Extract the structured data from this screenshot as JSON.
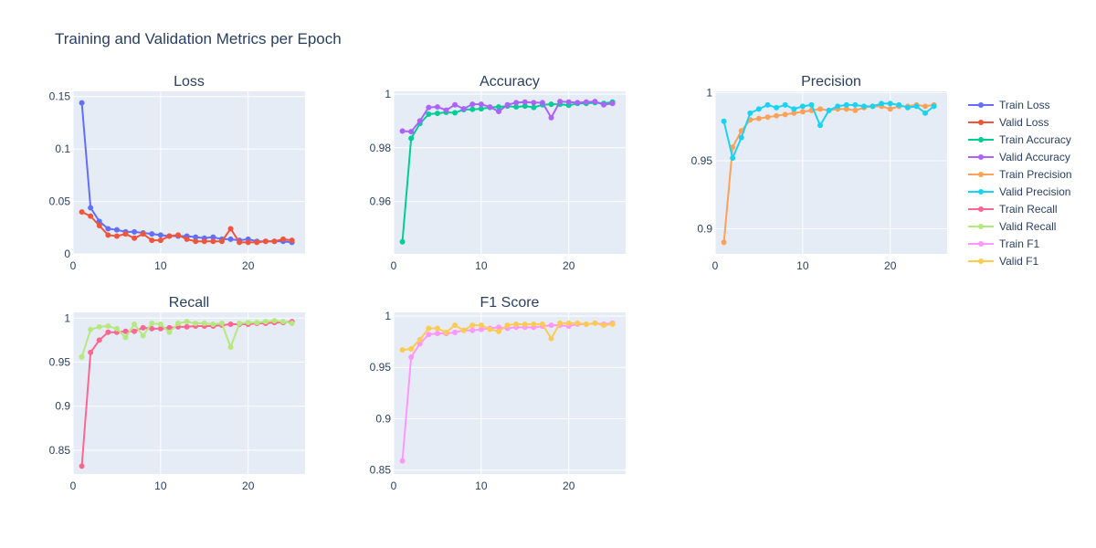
{
  "title": "Training and Validation Metrics per Epoch",
  "colors": {
    "plot_bg": "#e5ecf6",
    "grid": "#ffffff",
    "text": "#2a3f5f"
  },
  "chart_data": [
    {
      "type": "line",
      "title": "Loss",
      "xlim": [
        0,
        26.5
      ],
      "ylim": [
        0,
        0.155
      ],
      "xticks": [
        0,
        10,
        20
      ],
      "yticks": [
        0,
        0.05,
        0.1,
        0.15
      ],
      "ytick_labels": [
        "0",
        "0.05",
        "0.1",
        "0.15"
      ],
      "x": [
        1,
        2,
        3,
        4,
        5,
        6,
        7,
        8,
        9,
        10,
        11,
        12,
        13,
        14,
        15,
        16,
        17,
        18,
        19,
        20,
        21,
        22,
        23,
        24,
        25
      ],
      "series": [
        {
          "name": "Train Loss",
          "color": "#636efa",
          "values": [
            0.144,
            0.044,
            0.031,
            0.024,
            0.023,
            0.021,
            0.021,
            0.02,
            0.019,
            0.018,
            0.017,
            0.017,
            0.017,
            0.016,
            0.015,
            0.016,
            0.014,
            0.014,
            0.013,
            0.014,
            0.012,
            0.012,
            0.012,
            0.012,
            0.011
          ]
        },
        {
          "name": "Valid Loss",
          "color": "#ef553b",
          "values": [
            0.04,
            0.036,
            0.027,
            0.018,
            0.017,
            0.019,
            0.015,
            0.019,
            0.013,
            0.013,
            0.017,
            0.018,
            0.014,
            0.012,
            0.012,
            0.012,
            0.012,
            0.024,
            0.011,
            0.011,
            0.011,
            0.012,
            0.012,
            0.014,
            0.013
          ]
        }
      ]
    },
    {
      "type": "line",
      "title": "Accuracy",
      "xlim": [
        0,
        26.5
      ],
      "ylim": [
        0.9405,
        1.001
      ],
      "xticks": [
        0,
        10,
        20
      ],
      "yticks": [
        0.96,
        0.98,
        1
      ],
      "ytick_labels": [
        "0.96",
        "0.98",
        "1"
      ],
      "x": [
        1,
        2,
        3,
        4,
        5,
        6,
        7,
        8,
        9,
        10,
        11,
        12,
        13,
        14,
        15,
        16,
        17,
        18,
        19,
        20,
        21,
        22,
        23,
        24,
        25
      ],
      "series": [
        {
          "name": "Train Accuracy",
          "color": "#00cc96",
          "values": [
            0.945,
            0.9835,
            0.989,
            0.9925,
            0.9928,
            0.9932,
            0.993,
            0.9942,
            0.9943,
            0.9945,
            0.995,
            0.9952,
            0.9955,
            0.9952,
            0.9955,
            0.995,
            0.996,
            0.9962,
            0.9962,
            0.9958,
            0.9965,
            0.9965,
            0.9968,
            0.9965,
            0.997
          ]
        },
        {
          "name": "Valid Accuracy",
          "color": "#ab63fa",
          "values": [
            0.9862,
            0.986,
            0.99,
            0.995,
            0.9952,
            0.994,
            0.996,
            0.9945,
            0.9962,
            0.9962,
            0.9952,
            0.9935,
            0.996,
            0.9968,
            0.997,
            0.9968,
            0.9968,
            0.9912,
            0.9972,
            0.997,
            0.9968,
            0.997,
            0.9972,
            0.996,
            0.9965
          ]
        }
      ]
    },
    {
      "type": "line",
      "title": "Precision",
      "xlim": [
        0,
        26.5
      ],
      "ylim": [
        0.8815,
        1.001
      ],
      "xticks": [
        0,
        10,
        20
      ],
      "yticks": [
        0.9,
        0.95,
        1
      ],
      "ytick_labels": [
        "0.9",
        "0.95",
        "1"
      ],
      "x": [
        1,
        2,
        3,
        4,
        5,
        6,
        7,
        8,
        9,
        10,
        11,
        12,
        13,
        14,
        15,
        16,
        17,
        18,
        19,
        20,
        21,
        22,
        23,
        24,
        25
      ],
      "series": [
        {
          "name": "Train Precision",
          "color": "#ffa15a",
          "values": [
            0.89,
            0.96,
            0.972,
            0.98,
            0.981,
            0.982,
            0.983,
            0.984,
            0.985,
            0.986,
            0.987,
            0.988,
            0.987,
            0.988,
            0.988,
            0.987,
            0.989,
            0.99,
            0.99,
            0.988,
            0.99,
            0.99,
            0.991,
            0.99,
            0.991
          ]
        },
        {
          "name": "Valid Precision",
          "color": "#19d3f3",
          "values": [
            0.979,
            0.952,
            0.967,
            0.985,
            0.988,
            0.991,
            0.989,
            0.991,
            0.988,
            0.99,
            0.991,
            0.976,
            0.987,
            0.99,
            0.991,
            0.991,
            0.99,
            0.99,
            0.992,
            0.992,
            0.991,
            0.989,
            0.99,
            0.985,
            0.99
          ]
        }
      ]
    },
    {
      "type": "line",
      "title": "Recall",
      "xlim": [
        0,
        26.5
      ],
      "ylim": [
        0.823,
        1.0065
      ],
      "xticks": [
        0,
        10,
        20
      ],
      "yticks": [
        0.85,
        0.9,
        0.95,
        1
      ],
      "ytick_labels": [
        "0.85",
        "0.9",
        "0.95",
        "1"
      ],
      "x": [
        1,
        2,
        3,
        4,
        5,
        6,
        7,
        8,
        9,
        10,
        11,
        12,
        13,
        14,
        15,
        16,
        17,
        18,
        19,
        20,
        21,
        22,
        23,
        24,
        25
      ],
      "series": [
        {
          "name": "Train Recall",
          "color": "#ff6692",
          "values": [
            0.832,
            0.961,
            0.975,
            0.984,
            0.984,
            0.985,
            0.985,
            0.989,
            0.988,
            0.988,
            0.989,
            0.99,
            0.99,
            0.991,
            0.991,
            0.991,
            0.992,
            0.993,
            0.993,
            0.993,
            0.994,
            0.994,
            0.995,
            0.995,
            0.996
          ]
        },
        {
          "name": "Valid Recall",
          "color": "#b6e880",
          "values": [
            0.956,
            0.987,
            0.99,
            0.991,
            0.988,
            0.978,
            0.993,
            0.98,
            0.994,
            0.993,
            0.984,
            0.994,
            0.996,
            0.994,
            0.994,
            0.993,
            0.994,
            0.967,
            0.994,
            0.995,
            0.995,
            0.996,
            0.997,
            0.996,
            0.994
          ]
        }
      ]
    },
    {
      "type": "line",
      "title": "F1 Score",
      "xlim": [
        0,
        26.5
      ],
      "ylim": [
        0.8462,
        1.0035
      ],
      "xticks": [
        0,
        10,
        20
      ],
      "yticks": [
        0.85,
        0.9,
        0.95,
        1
      ],
      "ytick_labels": [
        "0.85",
        "0.9",
        "0.95",
        "1"
      ],
      "x": [
        1,
        2,
        3,
        4,
        5,
        6,
        7,
        8,
        9,
        10,
        11,
        12,
        13,
        14,
        15,
        16,
        17,
        18,
        19,
        20,
        21,
        22,
        23,
        24,
        25
      ],
      "series": [
        {
          "name": "Train F1",
          "color": "#ff97ff",
          "values": [
            0.859,
            0.96,
            0.973,
            0.982,
            0.983,
            0.983,
            0.984,
            0.986,
            0.986,
            0.987,
            0.988,
            0.989,
            0.988,
            0.989,
            0.989,
            0.989,
            0.99,
            0.991,
            0.991,
            0.99,
            0.992,
            0.992,
            0.993,
            0.992,
            0.993
          ]
        },
        {
          "name": "Valid F1",
          "color": "#fecb52",
          "values": [
            0.967,
            0.968,
            0.977,
            0.988,
            0.988,
            0.984,
            0.991,
            0.986,
            0.991,
            0.991,
            0.987,
            0.985,
            0.991,
            0.992,
            0.992,
            0.992,
            0.992,
            0.978,
            0.993,
            0.993,
            0.993,
            0.992,
            0.993,
            0.991,
            0.992
          ]
        }
      ]
    }
  ]
}
